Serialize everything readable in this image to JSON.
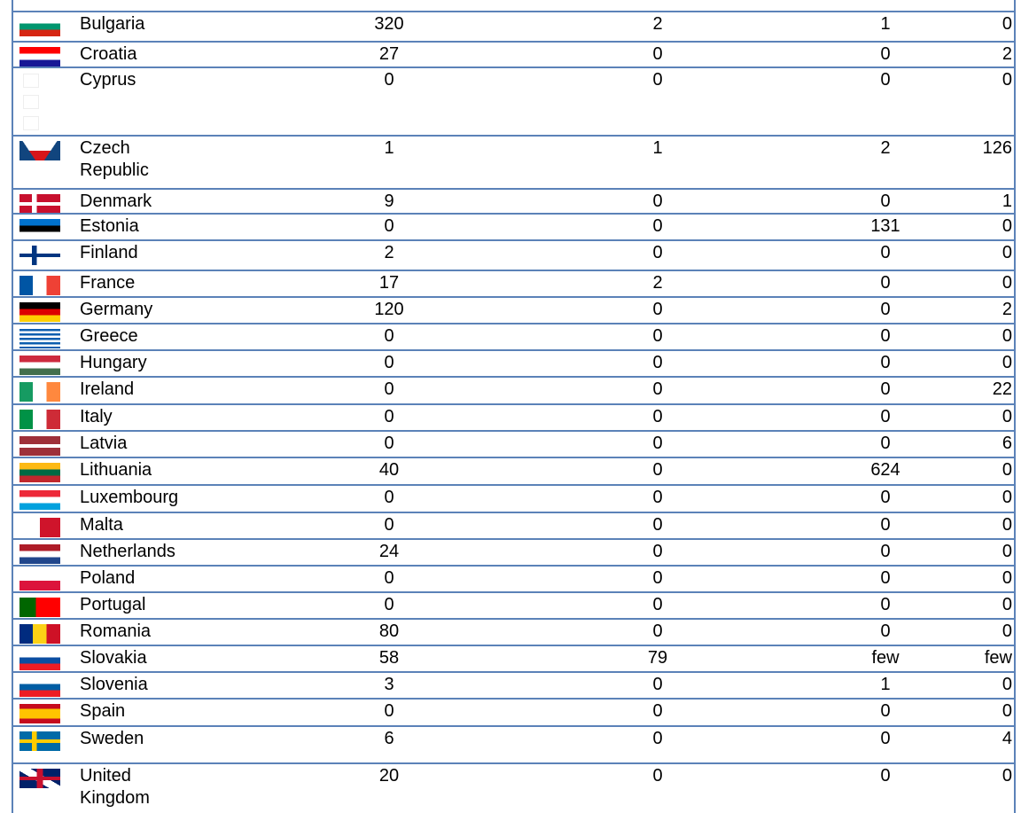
{
  "table": {
    "rows": [
      [
        "Bulgaria",
        320,
        2,
        1,
        0
      ],
      [
        "Croatia",
        27,
        0,
        0,
        2
      ],
      [
        "Cyprus",
        0,
        0,
        0,
        0
      ],
      [
        "Czech Republic",
        1,
        1,
        2,
        126
      ],
      [
        "Denmark",
        9,
        0,
        0,
        1
      ],
      [
        "Estonia",
        0,
        0,
        131,
        0
      ],
      [
        "Finland",
        2,
        0,
        0,
        0
      ],
      [
        "France",
        17,
        2,
        0,
        0
      ],
      [
        "Germany",
        120,
        0,
        0,
        2
      ],
      [
        "Greece",
        0,
        0,
        0,
        0
      ],
      [
        "Hungary",
        0,
        0,
        0,
        0
      ],
      [
        "Ireland",
        0,
        0,
        0,
        22
      ],
      [
        "Italy",
        0,
        0,
        0,
        0
      ],
      [
        "Latvia",
        0,
        0,
        0,
        6
      ],
      [
        "Lithuania",
        40,
        0,
        624,
        0
      ],
      [
        "Luxembourg",
        0,
        0,
        0,
        0
      ],
      [
        "Malta",
        0,
        0,
        0,
        0
      ],
      [
        "Netherlands",
        24,
        0,
        0,
        0
      ],
      [
        "Poland",
        0,
        0,
        0,
        0
      ],
      [
        "Portugal",
        0,
        0,
        0,
        0
      ],
      [
        "Romania",
        80,
        0,
        0,
        0
      ],
      [
        "Slovakia",
        58,
        79,
        "few",
        "few"
      ],
      [
        "Slovenia",
        3,
        0,
        1,
        0
      ],
      [
        "Spain",
        0,
        0,
        0,
        0
      ],
      [
        "Sweden",
        6,
        0,
        0,
        4
      ],
      [
        "United Kingdom",
        20,
        0,
        0,
        0
      ]
    ]
  }
}
